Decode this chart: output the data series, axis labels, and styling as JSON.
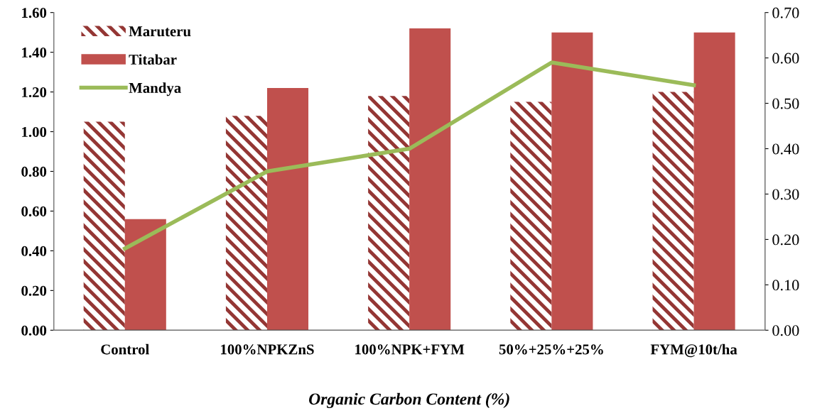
{
  "chart_data": {
    "type": "bar",
    "xlabel": "Organic Carbon Content (%)",
    "categories": [
      "Control",
      "100%NPKZnS",
      "100%NPK+FYM",
      "50%+25%+25%",
      "FYM@10t/ha"
    ],
    "series": [
      {
        "name": "Maruteru",
        "color": "#943634",
        "values": [
          1.05,
          1.08,
          1.18,
          1.15,
          1.2
        ]
      },
      {
        "name": "Titabar",
        "color": "#c0504d",
        "values": [
          0.56,
          1.22,
          1.52,
          1.5,
          1.5
        ]
      },
      {
        "name": "Mandya",
        "type": "line",
        "axis": "y2",
        "color": "#9bbb59",
        "values": [
          0.18,
          0.35,
          0.4,
          0.59,
          0.54
        ]
      }
    ],
    "ylim": [
      0,
      1.6
    ],
    "yticks": [
      {
        "value": 0,
        "label": "0.00"
      },
      {
        "value": 0.2,
        "label": "0.20"
      },
      {
        "value": 0.4,
        "label": "0.40"
      },
      {
        "value": 0.6,
        "label": "0.60"
      },
      {
        "value": 0.8,
        "label": "0.80"
      },
      {
        "value": 1.0,
        "label": "1.00"
      },
      {
        "value": 1.2,
        "label": "1.20"
      },
      {
        "value": 1.4,
        "label": "1.40"
      },
      {
        "value": 1.6,
        "label": "1.60"
      }
    ],
    "y2lim": [
      0,
      0.7
    ],
    "y2ticks": [
      {
        "value": 0,
        "label": "0.00"
      },
      {
        "value": 0.1,
        "label": "0.10"
      },
      {
        "value": 0.2,
        "label": "0.20"
      },
      {
        "value": 0.3,
        "label": "0.30"
      },
      {
        "value": 0.4,
        "label": "0.40"
      },
      {
        "value": 0.5,
        "label": "0.50"
      },
      {
        "value": 0.6,
        "label": "0.60"
      },
      {
        "value": 0.7,
        "label": "0.70"
      }
    ],
    "grid": false,
    "legend": "top left",
    "marker": "none",
    "line_style": "solid"
  }
}
